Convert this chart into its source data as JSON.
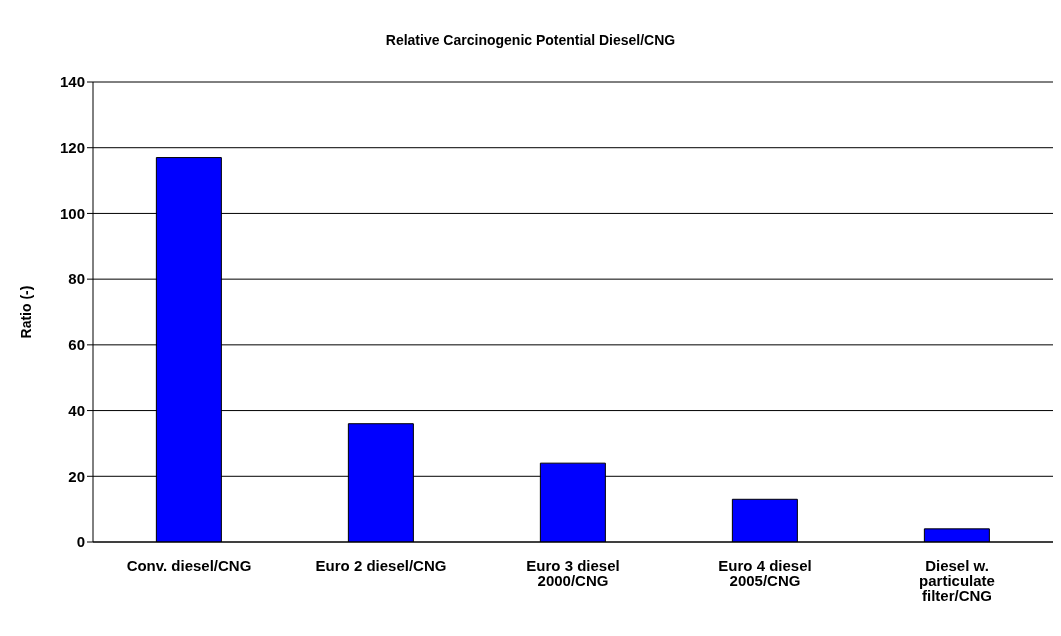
{
  "chart_data": {
    "type": "bar",
    "title": "Relative Carcinogenic Potential Diesel/CNG",
    "ylabel": "Ratio (-)",
    "categories": [
      "Conv. diesel/CNG",
      "Euro 2 diesel/CNG",
      "Euro 3 diesel 2000/CNG",
      "Euro 4 diesel 2005/CNG",
      "Diesel w. particulate filter/CNG"
    ],
    "values": [
      117,
      36,
      24,
      13,
      4
    ],
    "color": "#0000ff",
    "ylim": [
      0,
      140
    ],
    "yticks": [
      0,
      20,
      40,
      60,
      80,
      100,
      120,
      140
    ],
    "grid": "y",
    "legend": false
  }
}
